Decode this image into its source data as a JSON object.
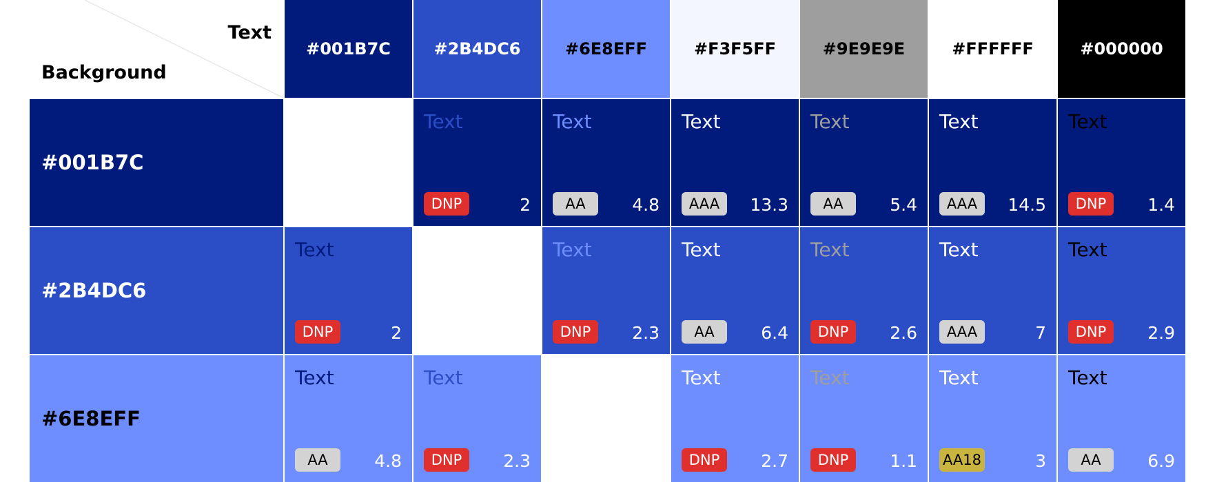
{
  "corner": {
    "text_label": "Text",
    "background_label": "Background"
  },
  "columns": [
    {
      "label": "#001B7C",
      "bg": "#001B7C",
      "fg": "#FFFFFF"
    },
    {
      "label": "#2B4DC6",
      "bg": "#2B4DC6",
      "fg": "#FFFFFF"
    },
    {
      "label": "#6E8EFF",
      "bg": "#6E8EFF",
      "fg": "#000000"
    },
    {
      "label": "#F3F5FF",
      "bg": "#F3F5FF",
      "fg": "#000000"
    },
    {
      "label": "#9E9E9E",
      "bg": "#9E9E9E",
      "fg": "#000000"
    },
    {
      "label": "#FFFFFF",
      "bg": "#FFFFFF",
      "fg": "#000000"
    },
    {
      "label": "#000000",
      "bg": "#000000",
      "fg": "#FFFFFF"
    }
  ],
  "rows": [
    {
      "label": "#001B7C",
      "bg": "#001B7C",
      "cells": [
        {
          "empty": true
        },
        {
          "text": "Text",
          "color": "#2B4DC6",
          "rating": "DNP",
          "ratio": "2"
        },
        {
          "text": "Text",
          "color": "#6E8EFF",
          "rating": "AA",
          "ratio": "4.8"
        },
        {
          "text": "Text",
          "color": "#F3F5FF",
          "rating": "AAA",
          "ratio": "13.3"
        },
        {
          "text": "Text",
          "color": "#9E9E9E",
          "rating": "AA",
          "ratio": "5.4"
        },
        {
          "text": "Text",
          "color": "#FFFFFF",
          "rating": "AAA",
          "ratio": "14.5"
        },
        {
          "text": "Text",
          "color": "#000000",
          "rating": "DNP",
          "ratio": "1.4"
        }
      ]
    },
    {
      "label": "#2B4DC6",
      "bg": "#2B4DC6",
      "cells": [
        {
          "text": "Text",
          "color": "#001B7C",
          "rating": "DNP",
          "ratio": "2"
        },
        {
          "empty": true
        },
        {
          "text": "Text",
          "color": "#6E8EFF",
          "rating": "DNP",
          "ratio": "2.3"
        },
        {
          "text": "Text",
          "color": "#F3F5FF",
          "rating": "AA",
          "ratio": "6.4"
        },
        {
          "text": "Text",
          "color": "#9E9E9E",
          "rating": "DNP",
          "ratio": "2.6"
        },
        {
          "text": "Text",
          "color": "#FFFFFF",
          "rating": "AAA",
          "ratio": "7"
        },
        {
          "text": "Text",
          "color": "#000000",
          "rating": "DNP",
          "ratio": "2.9"
        }
      ]
    },
    {
      "label": "#6E8EFF",
      "bg": "#6E8EFF",
      "cells": [
        {
          "text": "Text",
          "color": "#001B7C",
          "rating": "AA",
          "ratio": "4.8"
        },
        {
          "text": "Text",
          "color": "#2B4DC6",
          "rating": "DNP",
          "ratio": "2.3"
        },
        {
          "empty": true
        },
        {
          "text": "Text",
          "color": "#F3F5FF",
          "rating": "DNP",
          "ratio": "2.7"
        },
        {
          "text": "Text",
          "color": "#9E9E9E",
          "rating": "DNP",
          "ratio": "1.1"
        },
        {
          "text": "Text",
          "color": "#FFFFFF",
          "rating": "AA18",
          "ratio": "3"
        },
        {
          "text": "Text",
          "color": "#000000",
          "rating": "AA",
          "ratio": "6.9"
        }
      ]
    }
  ]
}
